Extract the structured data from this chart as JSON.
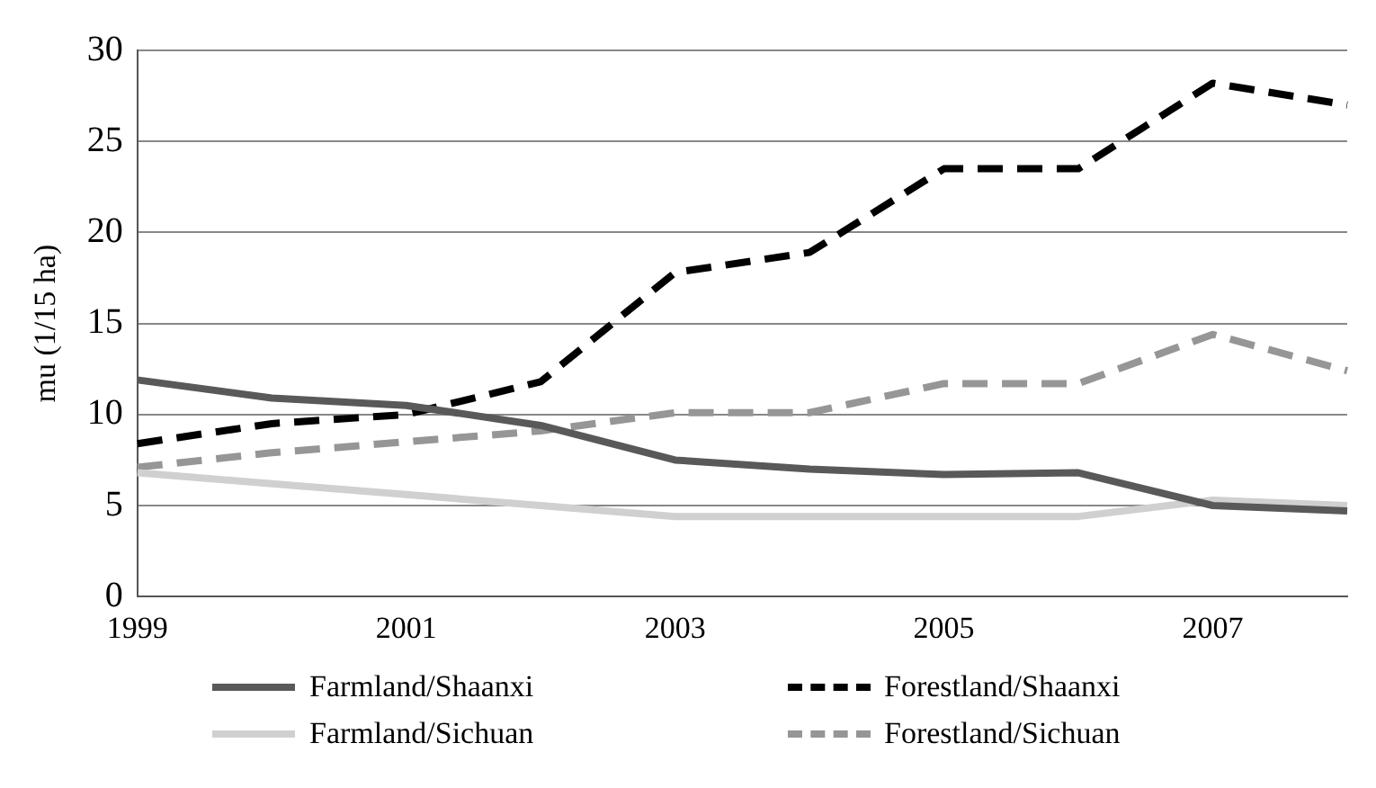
{
  "chart_data": {
    "type": "line",
    "ylabel": "mu (1/15 ha)",
    "categories": [
      "1999",
      null,
      "2001",
      null,
      "2003",
      null,
      "2005",
      null,
      "2007",
      null
    ],
    "series": [
      {
        "name": "Farmland/Shaanxi",
        "color": "#595959",
        "line_style": "solid",
        "values": [
          11.9,
          10.9,
          10.5,
          9.4,
          7.5,
          7.0,
          6.7,
          6.8,
          5.0,
          4.7
        ]
      },
      {
        "name": "Forestland/Shaanxi",
        "color": "#000000",
        "line_style": "dashed",
        "values": [
          8.4,
          9.5,
          10.0,
          11.8,
          17.8,
          18.9,
          23.5,
          23.5,
          28.2,
          27.0
        ]
      },
      {
        "name": "Farmland/Sichuan",
        "color": "#d0d0d0",
        "line_style": "solid",
        "values": [
          6.8,
          6.2,
          5.6,
          5.0,
          4.4,
          4.4,
          4.4,
          4.4,
          5.3,
          5.0
        ]
      },
      {
        "name": "Forestland/Sichuan",
        "color": "#969696",
        "line_style": "dashed",
        "values": [
          7.1,
          7.9,
          8.5,
          9.1,
          10.1,
          10.1,
          11.7,
          11.7,
          14.4,
          12.4
        ]
      }
    ],
    "ylim": [
      0,
      30
    ],
    "yticks": [
      0,
      5,
      10,
      15,
      20,
      25,
      30
    ],
    "grid": "y",
    "legend": "bottom",
    "marker": "none"
  }
}
